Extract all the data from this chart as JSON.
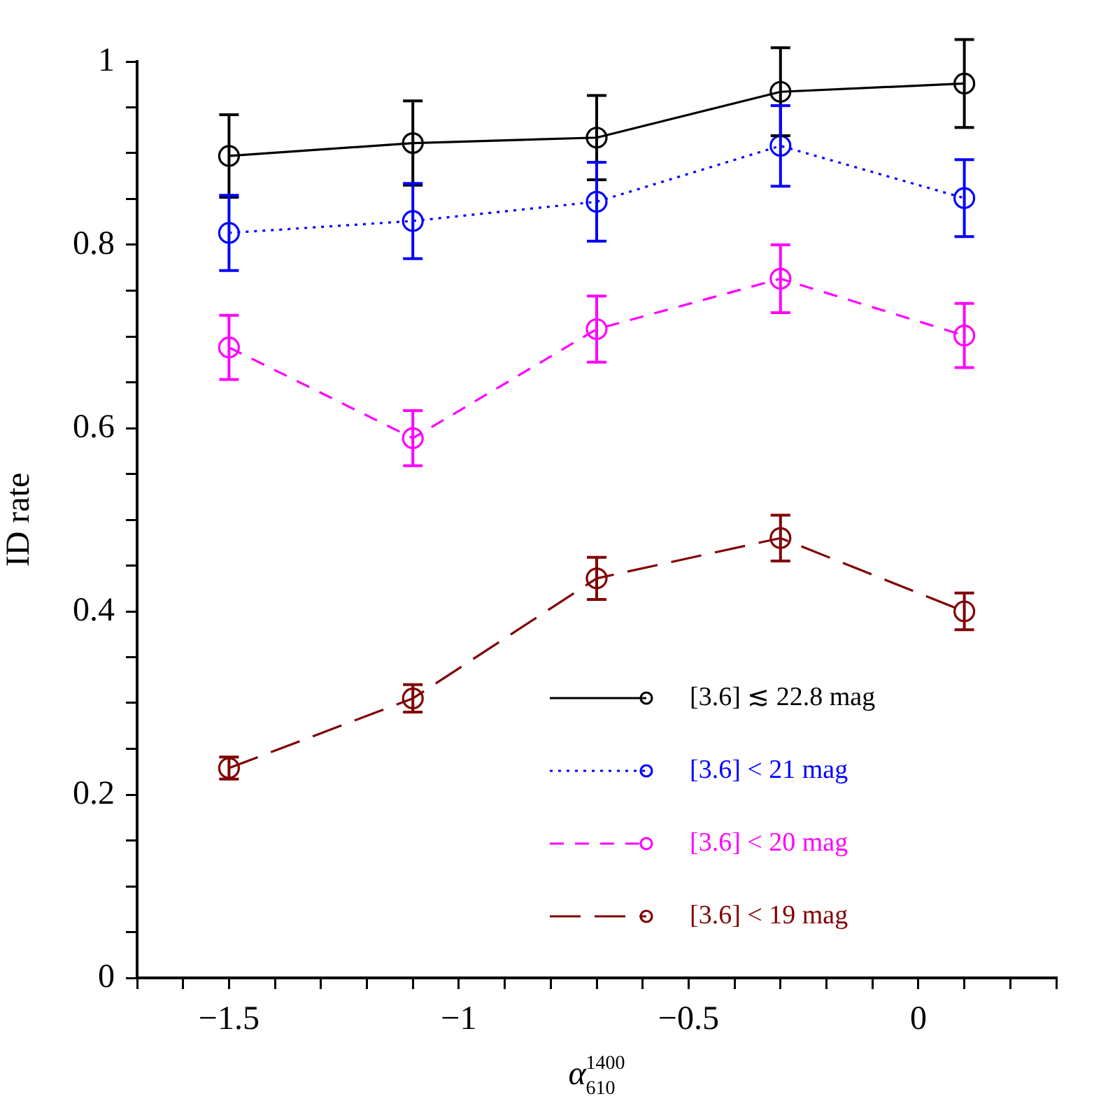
{
  "chart_data": {
    "type": "line",
    "xlabel": "α$_{610}$$^{1400}$",
    "ylabel": "ID rate",
    "x": [
      -1.5,
      -1.1,
      -0.7,
      -0.3,
      0.1
    ],
    "xlim": [
      -1.7,
      0.3
    ],
    "xticks": [
      {
        "value": -1.7,
        "label": null
      },
      {
        "value": -1.6,
        "label": null
      },
      {
        "value": -1.5,
        "label": "−1.5"
      },
      {
        "value": -1.4,
        "label": null
      },
      {
        "value": -1.3,
        "label": null
      },
      {
        "value": -1.2,
        "label": null
      },
      {
        "value": -1.1,
        "label": null
      },
      {
        "value": -1,
        "label": "−1"
      },
      {
        "value": -0.9,
        "label": null
      },
      {
        "value": -0.8,
        "label": null
      },
      {
        "value": -0.7,
        "label": null
      },
      {
        "value": -0.6,
        "label": null
      },
      {
        "value": -0.5,
        "label": "−0.5"
      },
      {
        "value": -0.4,
        "label": null
      },
      {
        "value": -0.3,
        "label": null
      },
      {
        "value": -0.2,
        "label": null
      },
      {
        "value": -0.1,
        "label": null
      },
      0,
      {
        "value": 0.1,
        "label": null
      },
      {
        "value": 0.2,
        "label": null
      },
      {
        "value": 0.3,
        "label": null
      }
    ],
    "ylim": [
      0,
      1
    ],
    "yticks": [
      0,
      {
        "value": 0.05,
        "label": null
      },
      {
        "value": 0.1,
        "label": null
      },
      {
        "value": 0.15,
        "label": null
      },
      0.2,
      {
        "value": 0.25,
        "label": null
      },
      {
        "value": 0.3,
        "label": null
      },
      {
        "value": 0.35,
        "label": null
      },
      0.4,
      {
        "value": 0.45,
        "label": null
      },
      {
        "value": 0.5,
        "label": null
      },
      {
        "value": 0.55,
        "label": null
      },
      0.6,
      {
        "value": 0.65,
        "label": null
      },
      {
        "value": 0.7,
        "label": null
      },
      {
        "value": 0.75,
        "label": null
      },
      0.8,
      {
        "value": 0.85,
        "label": null
      },
      {
        "value": 0.9,
        "label": null
      },
      {
        "value": 0.95,
        "label": null
      },
      1
    ],
    "grid": false,
    "legend": "bottom right",
    "marker": "circle",
    "series": [
      {
        "name": "[3.6] ≲ 22.8 mag",
        "color": "#000000",
        "line_style": "solid",
        "values": [
          0.897,
          0.911,
          0.917,
          0.967,
          0.976
        ],
        "errors": [
          0.045,
          0.046,
          0.046,
          0.048,
          0.048
        ]
      },
      {
        "name": "[3.6] < 21 mag",
        "color": "#0000ff",
        "line_style": "dotted",
        "values": [
          0.813,
          0.826,
          0.847,
          0.908,
          0.851
        ],
        "errors": [
          0.041,
          0.041,
          0.043,
          0.044,
          0.042
        ]
      },
      {
        "name": "[3.6] < 20 mag",
        "color": "#ff00ff",
        "line_style": "dashed",
        "values": [
          0.688,
          0.589,
          0.708,
          0.763,
          0.701
        ],
        "errors": [
          0.035,
          0.03,
          0.036,
          0.037,
          0.035
        ]
      },
      {
        "name": "[3.6] < 19 mag",
        "color": "#800000",
        "line_style": "dashed",
        "values": [
          0.229,
          0.305,
          0.436,
          0.48,
          0.4
        ],
        "errors": [
          0.012,
          0.015,
          0.023,
          0.025,
          0.02
        ]
      }
    ]
  }
}
